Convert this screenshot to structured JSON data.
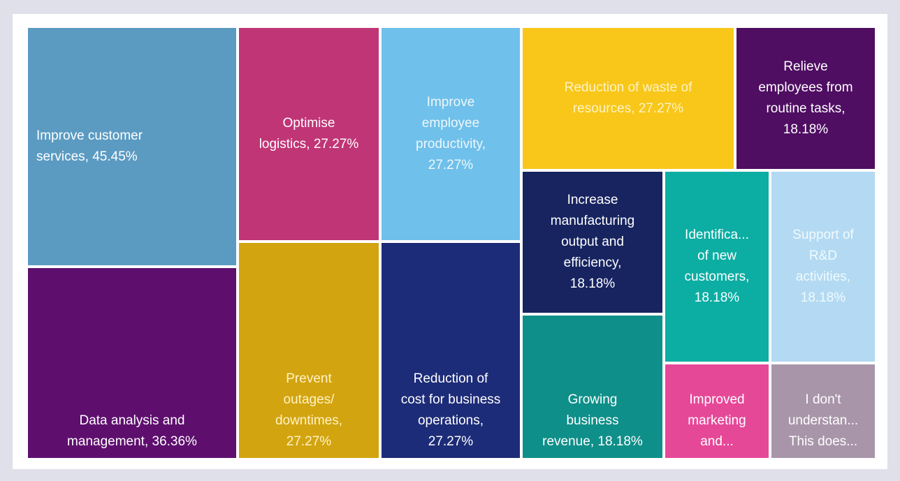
{
  "chart_data": {
    "type": "treemap",
    "units": "%",
    "items": [
      {
        "label": "Improve customer services, 45.45%",
        "value": 45.45,
        "color": "#5b9bc2",
        "text_color": "#ffffff"
      },
      {
        "label": "Data analysis and management, 36.36%",
        "value": 36.36,
        "color": "#5e0f6e",
        "text_color": "#ffffff"
      },
      {
        "label": "Optimise logistics, 27.27%",
        "value": 27.27,
        "color": "#c03576",
        "text_color": "#ffffff"
      },
      {
        "label": "Prevent outages/ downtimes, 27.27%",
        "value": 27.27,
        "color": "#d2a410",
        "text_color": "#fff3c4"
      },
      {
        "label": "Improve employee productivity, 27.27%",
        "value": 27.27,
        "color": "#6fc0ea",
        "text_color": "#eef7fc"
      },
      {
        "label": "Reduction of cost for business operations, 27.27%",
        "value": 27.27,
        "color": "#1d2c78",
        "text_color": "#ffffff"
      },
      {
        "label": "Reduction of waste of resources, 27.27%",
        "value": 27.27,
        "color": "#f8c71a",
        "text_color": "#fff3c4"
      },
      {
        "label": "Relieve employees from routine tasks, 18.18%",
        "value": 18.18,
        "color": "#4f0e62",
        "text_color": "#ffffff"
      },
      {
        "label": "Increase manufacturing output and efficiency, 18.18%",
        "value": 18.18,
        "color": "#172460",
        "text_color": "#ffffff"
      },
      {
        "label": "Growing business revenue, 18.18%",
        "value": 18.18,
        "color": "#0f8f89",
        "text_color": "#ffffff"
      },
      {
        "label": "Identifica... of new customers, 18.18%",
        "value": 18.18,
        "color": "#0cada3",
        "text_color": "#ffffff"
      },
      {
        "label": "Support of R&D activities, 18.18%",
        "value": 18.18,
        "color": "#b3daf2",
        "text_color": "#f2f9fd"
      },
      {
        "label": "Improved marketing and...",
        "value": 9.09,
        "color": "#e64898",
        "text_color": "#ffffff"
      },
      {
        "label": "I don't understan... This does...",
        "value": 9.09,
        "color": "#a895a9",
        "text_color": "#ffffff"
      }
    ]
  }
}
